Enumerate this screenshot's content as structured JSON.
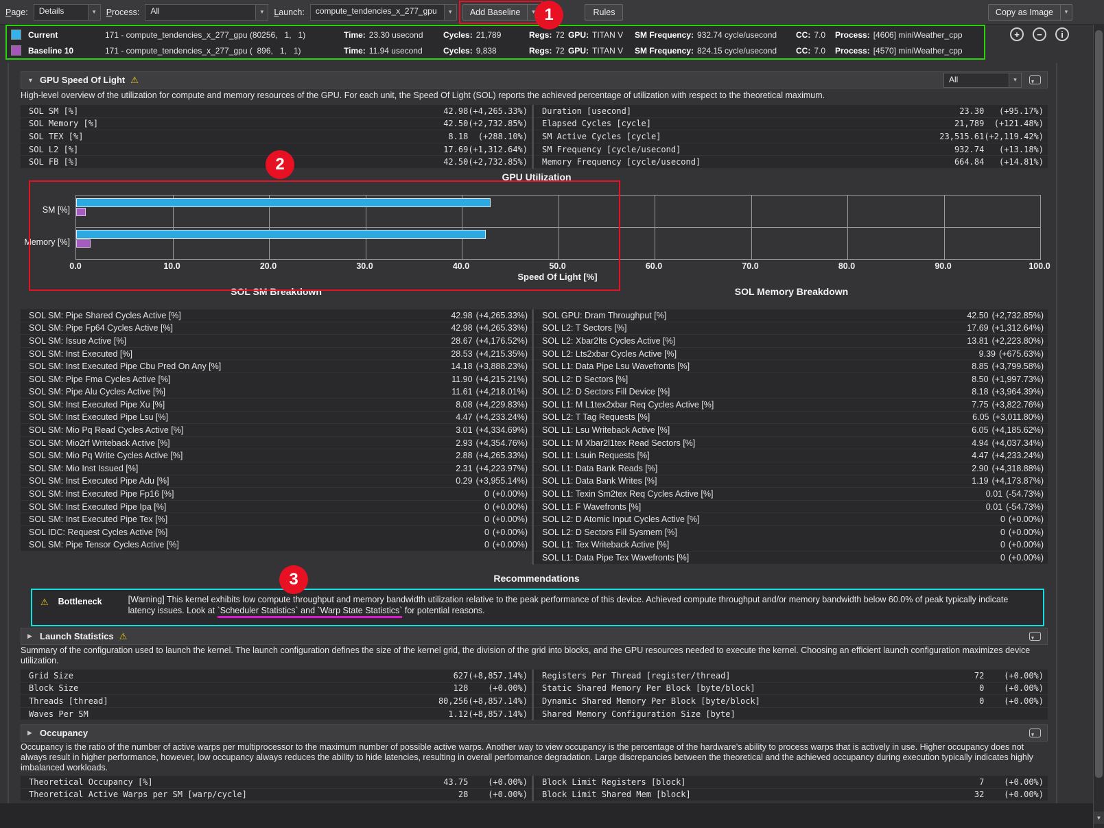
{
  "toolbar": {
    "page_label": "Page:",
    "page_value": "Details",
    "process_label": "Process:",
    "process_value": "All",
    "launch_label": "Launch:",
    "launch_value": "compute_tendencies_x_277_gpu",
    "add_baseline": "Add Baseline",
    "rules": "Rules",
    "copy_as_image": "Copy as Image"
  },
  "icons": {
    "warning": "⚠",
    "dropdown_arrow": "▾",
    "section_expanded": "▼",
    "section_collapsed": "▶",
    "zoom_in": "+",
    "zoom_out": "−",
    "info": "i",
    "scroll_down": "▼"
  },
  "compare": {
    "rows": [
      {
        "swatch": "#35b2ea",
        "name": "Current",
        "kernel": "171 - compute_tendencies_x_277_gpu (80256,   1,   1)",
        "fields": [
          {
            "label": "Time:",
            "value": "23.30 usecond"
          },
          {
            "label": "Cycles:",
            "value": "21,789"
          },
          {
            "label": "Regs:",
            "value": "72"
          },
          {
            "label": "GPU:",
            "value": "TITAN V"
          },
          {
            "label": "SM Frequency:",
            "value": "932.74 cycle/usecond"
          },
          {
            "label": "CC:",
            "value": "7.0"
          },
          {
            "label": "Process:",
            "value": "[4606] miniWeather_cpp"
          }
        ]
      },
      {
        "swatch": "#a556b8",
        "name": "Baseline 10",
        "kernel": "171 - compute_tendencies_x_277_gpu (  896,   1,   1)",
        "fields": [
          {
            "label": "Time:",
            "value": "11.94 usecond"
          },
          {
            "label": "Cycles:",
            "value": "9,838"
          },
          {
            "label": "Regs:",
            "value": "72"
          },
          {
            "label": "GPU:",
            "value": "TITAN V"
          },
          {
            "label": "SM Frequency:",
            "value": "824.15 cycle/usecond"
          },
          {
            "label": "CC:",
            "value": "7.0"
          },
          {
            "label": "Process:",
            "value": "[4570] miniWeather_cpp"
          }
        ]
      }
    ]
  },
  "sol": {
    "header": "GPU Speed Of Light",
    "filter": "All",
    "desc": "High-level overview of the utilization for compute and memory resources of the GPU. For each unit, the Speed Of Light (SOL) reports the achieved percentage of utilization with respect to the theoretical maximum.",
    "left": [
      {
        "label": "SOL SM [%]",
        "value": "42.98",
        "delta": "(+4,265.33%)"
      },
      {
        "label": "SOL Memory [%]",
        "value": "42.50",
        "delta": "(+2,732.85%)"
      },
      {
        "label": "SOL TEX [%]",
        "value": "8.18",
        "delta": "(+288.10%)"
      },
      {
        "label": "SOL L2 [%]",
        "value": "17.69",
        "delta": "(+1,312.64%)"
      },
      {
        "label": "SOL FB [%]",
        "value": "42.50",
        "delta": "(+2,732.85%)"
      }
    ],
    "right": [
      {
        "label": "Duration [usecond]",
        "value": "23.30",
        "delta": "(+95.17%)"
      },
      {
        "label": "Elapsed Cycles [cycle]",
        "value": "21,789",
        "delta": "(+121.48%)"
      },
      {
        "label": "SM Active Cycles [cycle]",
        "value": "23,515.61",
        "delta": "(+2,119.42%)"
      },
      {
        "label": "SM Frequency [cycle/usecond]",
        "value": "932.74",
        "delta": "(+13.18%)"
      },
      {
        "label": "Memory Frequency [cycle/usecond]",
        "value": "664.84",
        "delta": "(+14.81%)"
      }
    ]
  },
  "chart_data": {
    "type": "bar",
    "title": "GPU Utilization",
    "categories": [
      "SM [%]",
      "Memory [%]"
    ],
    "series": [
      {
        "name": "Current",
        "color": "#2da9e2",
        "border": "#d9eefa",
        "values": [
          42.98,
          42.5
        ]
      },
      {
        "name": "Baseline 10",
        "color": "#a55cc0",
        "border": "#dcc0ea",
        "values": [
          0.98,
          1.5
        ]
      }
    ],
    "xlabel": "Speed Of Light [%]",
    "xlim": [
      0,
      100
    ],
    "xticks": [
      0,
      10,
      20,
      30,
      40,
      50,
      60,
      70,
      80,
      90,
      100
    ],
    "grid": true,
    "legend_position": "none"
  },
  "breakdown": {
    "left_title": "SOL SM Breakdown",
    "right_title": "SOL Memory Breakdown",
    "left": [
      {
        "label": "SOL SM: Pipe Shared Cycles Active [%]",
        "value": "42.98",
        "delta": "(+4,265.33%)"
      },
      {
        "label": "SOL SM: Pipe Fp64 Cycles Active [%]",
        "value": "42.98",
        "delta": "(+4,265.33%)"
      },
      {
        "label": "SOL SM: Issue Active [%]",
        "value": "28.67",
        "delta": "(+4,176.52%)"
      },
      {
        "label": "SOL SM: Inst Executed [%]",
        "value": "28.53",
        "delta": "(+4,215.35%)"
      },
      {
        "label": "SOL SM: Inst Executed Pipe Cbu Pred On Any [%]",
        "value": "14.18",
        "delta": "(+3,888.23%)"
      },
      {
        "label": "SOL SM: Pipe Fma Cycles Active [%]",
        "value": "11.90",
        "delta": "(+4,215.21%)"
      },
      {
        "label": "SOL SM: Pipe Alu Cycles Active [%]",
        "value": "11.61",
        "delta": "(+4,218.01%)"
      },
      {
        "label": "SOL SM: Inst Executed Pipe Xu [%]",
        "value": "8.08",
        "delta": "(+4,229.83%)"
      },
      {
        "label": "SOL SM: Inst Executed Pipe Lsu [%]",
        "value": "4.47",
        "delta": "(+4,233.24%)"
      },
      {
        "label": "SOL SM: Mio Pq Read Cycles Active [%]",
        "value": "3.01",
        "delta": "(+4,334.69%)"
      },
      {
        "label": "SOL SM: Mio2rf Writeback Active [%]",
        "value": "2.93",
        "delta": "(+4,354.76%)"
      },
      {
        "label": "SOL SM: Mio Pq Write Cycles Active [%]",
        "value": "2.88",
        "delta": "(+4,265.33%)"
      },
      {
        "label": "SOL SM: Mio Inst Issued [%]",
        "value": "2.31",
        "delta": "(+4,223.97%)"
      },
      {
        "label": "SOL SM: Inst Executed Pipe Adu [%]",
        "value": "0.29",
        "delta": "(+3,955.14%)"
      },
      {
        "label": "SOL SM: Inst Executed Pipe Fp16 [%]",
        "value": "0",
        "delta": "(+0.00%)"
      },
      {
        "label": "SOL SM: Inst Executed Pipe Ipa [%]",
        "value": "0",
        "delta": "(+0.00%)"
      },
      {
        "label": "SOL SM: Inst Executed Pipe Tex [%]",
        "value": "0",
        "delta": "(+0.00%)"
      },
      {
        "label": "SOL IDC: Request Cycles Active [%]",
        "value": "0",
        "delta": "(+0.00%)"
      },
      {
        "label": "SOL SM: Pipe Tensor Cycles Active [%]",
        "value": "0",
        "delta": "(+0.00%)"
      }
    ],
    "right": [
      {
        "label": "SOL GPU: Dram Throughput [%]",
        "value": "42.50",
        "delta": "(+2,732.85%)"
      },
      {
        "label": "SOL L2: T Sectors [%]",
        "value": "17.69",
        "delta": "(+1,312.64%)"
      },
      {
        "label": "SOL L2: Xbar2lts Cycles Active [%]",
        "value": "13.81",
        "delta": "(+2,223.80%)"
      },
      {
        "label": "SOL L2: Lts2xbar Cycles Active [%]",
        "value": "9.39",
        "delta": "(+675.63%)"
      },
      {
        "label": "SOL L1: Data Pipe Lsu Wavefronts [%]",
        "value": "8.85",
        "delta": "(+3,799.58%)"
      },
      {
        "label": "SOL L2: D Sectors [%]",
        "value": "8.50",
        "delta": "(+1,997.73%)"
      },
      {
        "label": "SOL L2: D Sectors Fill Device [%]",
        "value": "8.18",
        "delta": "(+3,964.39%)"
      },
      {
        "label": "SOL L1: M L1tex2xbar Req Cycles Active [%]",
        "value": "7.75",
        "delta": "(+3,822.76%)"
      },
      {
        "label": "SOL L2: T Tag Requests [%]",
        "value": "6.05",
        "delta": "(+3,011.80%)"
      },
      {
        "label": "SOL L1: Lsu Writeback Active [%]",
        "value": "6.05",
        "delta": "(+4,185.62%)"
      },
      {
        "label": "SOL L1: M Xbar2l1tex Read Sectors [%]",
        "value": "4.94",
        "delta": "(+4,037.34%)"
      },
      {
        "label": "SOL L1: Lsuin Requests [%]",
        "value": "4.47",
        "delta": "(+4,233.24%)"
      },
      {
        "label": "SOL L1: Data Bank Reads [%]",
        "value": "2.90",
        "delta": "(+4,318.88%)"
      },
      {
        "label": "SOL L1: Data Bank Writes [%]",
        "value": "1.19",
        "delta": "(+4,173.87%)"
      },
      {
        "label": "SOL L1: Texin Sm2tex Req Cycles Active [%]",
        "value": "0.01",
        "delta": "(-54.73%)"
      },
      {
        "label": "SOL L1: F Wavefronts [%]",
        "value": "0.01",
        "delta": "(-54.73%)"
      },
      {
        "label": "SOL L2: D Atomic Input Cycles Active [%]",
        "value": "0",
        "delta": "(+0.00%)"
      },
      {
        "label": "SOL L2: D Sectors Fill Sysmem [%]",
        "value": "0",
        "delta": "(+0.00%)"
      },
      {
        "label": "SOL L1: Tex Writeback Active [%]",
        "value": "0",
        "delta": "(+0.00%)"
      },
      {
        "label": "SOL L1: Data Pipe Tex Wavefronts [%]",
        "value": "0",
        "delta": "(+0.00%)"
      }
    ]
  },
  "reco": {
    "title": "Recommendations",
    "label": "Bottleneck",
    "seg1": "[Warning] This kernel exhibits low compute throughput and memory bandwidth utilization relative to the peak performance of this device. Achieved compute throughput and/or memory bandwidth below 60.0% of peak typically indicate latency issues. Look at ",
    "link1": "`Scheduler Statistics`",
    "conj": " and ",
    "link2": "`Warp State Statistics`",
    "seg2": " for potential reasons."
  },
  "launch": {
    "header": "Launch Statistics",
    "desc": "Summary of the configuration used to launch the kernel. The launch configuration defines the size of the kernel grid, the division of the grid into blocks, and the GPU resources needed to execute the kernel. Choosing an efficient launch configuration maximizes device utilization.",
    "left": [
      {
        "label": "Grid Size",
        "value": "627",
        "delta": "(+8,857.14%)"
      },
      {
        "label": "Block Size",
        "value": "128",
        "delta": "(+0.00%)"
      },
      {
        "label": "Threads [thread]",
        "value": "80,256",
        "delta": "(+8,857.14%)"
      },
      {
        "label": "Waves Per SM",
        "value": "1.12",
        "delta": "(+8,857.14%)"
      }
    ],
    "right": [
      {
        "label": "Registers Per Thread [register/thread]",
        "value": "72",
        "delta": "(+0.00%)"
      },
      {
        "label": "Static Shared Memory Per Block [byte/block]",
        "value": "0",
        "delta": "(+0.00%)"
      },
      {
        "label": "Dynamic Shared Memory Per Block [byte/block]",
        "value": "0",
        "delta": "(+0.00%)"
      },
      {
        "label": "Shared Memory Configuration Size [byte]",
        "value": "",
        "delta": ""
      }
    ]
  },
  "occupancy": {
    "header": "Occupancy",
    "desc": "Occupancy is the ratio of the number of active warps per multiprocessor to the maximum number of possible active warps. Another way to view occupancy is the percentage of the hardware's ability to process warps that is actively in use. Higher occupancy does not always result in higher performance, however, low occupancy always reduces the ability to hide latencies, resulting in overall performance degradation. Large discrepancies between the theoretical and the achieved occupancy during execution typically indicates highly imbalanced workloads.",
    "left": [
      {
        "label": "Theoretical Occupancy [%]",
        "value": "43.75",
        "delta": "(+0.00%)"
      },
      {
        "label": "Theoretical Active Warps per SM [warp/cycle]",
        "value": "28",
        "delta": "(+0.00%)"
      }
    ],
    "right": [
      {
        "label": "Block Limit Registers [block]",
        "value": "7",
        "delta": "(+0.00%)"
      },
      {
        "label": "Block Limit Shared Mem [block]",
        "value": "32",
        "delta": "(+0.00%)"
      }
    ]
  },
  "annotations": {
    "badge1": "1",
    "badge2": "2",
    "badge3": "3"
  },
  "colors": {
    "accent_blue": "#35b2ea",
    "accent_purple": "#a556b8",
    "annotation_red": "#e81123",
    "highlight_green": "#2bd30e",
    "highlight_cyan": "#17dede",
    "link_underline": "#dd17cc",
    "warning_yellow": "#e9c417"
  }
}
